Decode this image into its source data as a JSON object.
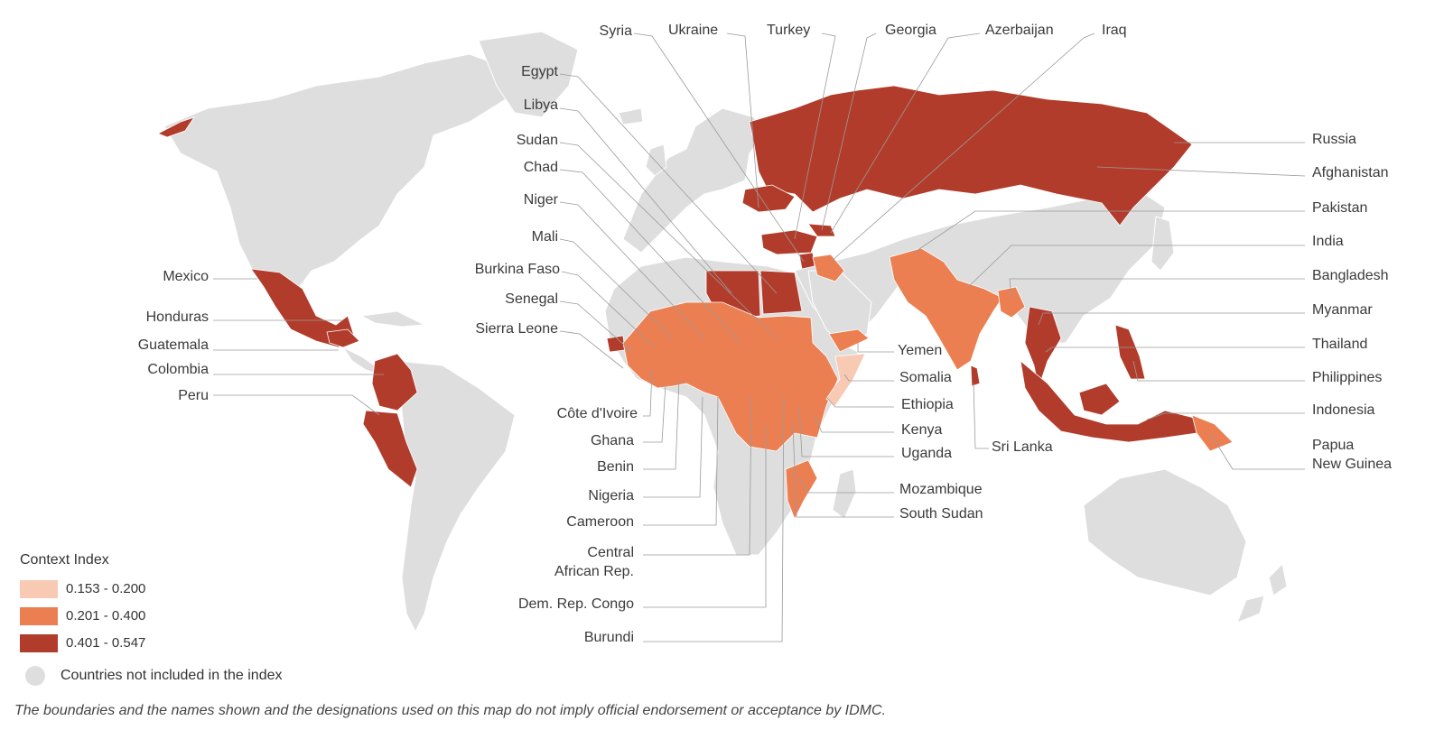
{
  "legend": {
    "title": "Context Index",
    "classes": [
      {
        "label": "0.153 - 0.200",
        "color": "#f8c9b3"
      },
      {
        "label": "0.201 - 0.400",
        "color": "#ec7f52"
      },
      {
        "label": "0.401 - 0.547",
        "color": "#b23c2b"
      }
    ],
    "not_included": {
      "label": "Countries not included in the index",
      "color": "#dedede"
    }
  },
  "disclaimer": "The boundaries and the names shown and the designations used on this map do not imply official endorsement or acceptance by IDMC.",
  "countries": {
    "syria": "Syria",
    "ukraine": "Ukraine",
    "turkey": "Turkey",
    "georgia": "Georgia",
    "azerbaijan": "Azerbaijan",
    "iraq": "Iraq",
    "egypt": "Egypt",
    "libya": "Libya",
    "sudan": "Sudan",
    "chad": "Chad",
    "niger": "Niger",
    "mali": "Mali",
    "burkina_faso": "Burkina Faso",
    "senegal": "Senegal",
    "sierra_leone": "Sierra Leone",
    "mexico": "Mexico",
    "honduras": "Honduras",
    "guatemala": "Guatemala",
    "colombia": "Colombia",
    "peru": "Peru",
    "cote_divoire": "Côte d'Ivoire",
    "ghana": "Ghana",
    "benin": "Benin",
    "nigeria": "Nigeria",
    "cameroon": "Cameroon",
    "car_line1": "Central",
    "car_line2": "African Rep.",
    "drc": "Dem. Rep. Congo",
    "burundi": "Burundi",
    "yemen": "Yemen",
    "somalia": "Somalia",
    "ethiopia": "Ethiopia",
    "kenya": "Kenya",
    "uganda": "Uganda",
    "mozambique": "Mozambique",
    "south_sudan": "South Sudan",
    "sri_lanka": "Sri Lanka",
    "russia": "Russia",
    "afghanistan": "Afghanistan",
    "pakistan": "Pakistan",
    "india": "India",
    "bangladesh": "Bangladesh",
    "myanmar": "Myanmar",
    "thailand": "Thailand",
    "philippines": "Philippines",
    "indonesia": "Indonesia",
    "png_line1": "Papua",
    "png_line2": "New Guinea"
  }
}
